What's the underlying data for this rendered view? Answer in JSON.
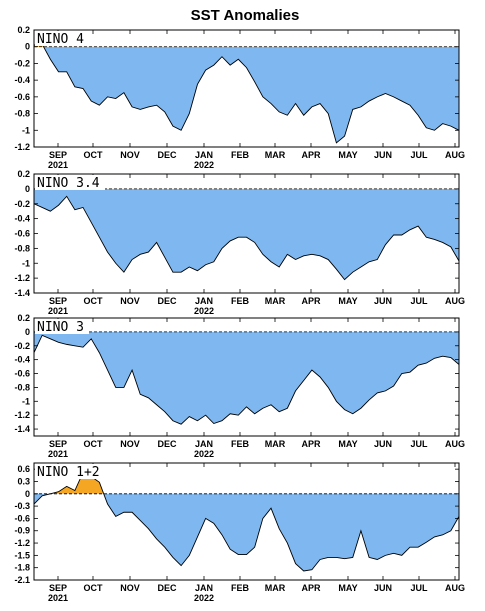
{
  "title": "SST Anomalies",
  "colors": {
    "negative": "#7fb8f0",
    "positive": "#f5a623",
    "line": "#000000",
    "frame": "#000000"
  },
  "chart_data": [
    {
      "type": "area",
      "label": "NINO 4",
      "x_ticks": [
        "SEP",
        "OCT",
        "NOV",
        "DEC",
        "JAN",
        "FEB",
        "MAR",
        "APR",
        "MAY",
        "JUN",
        "JUL",
        "AUG"
      ],
      "year_labels": [
        {
          "tick": "SEP",
          "text": "2021"
        },
        {
          "tick": "JAN",
          "text": "2022"
        }
      ],
      "ylim": [
        -1.2,
        0.2
      ],
      "y_ticks": [
        "0.2",
        "0",
        "-0.2",
        "-0.4",
        "-0.6",
        "-0.8",
        "-1",
        "-1.2"
      ],
      "y_tick_values": [
        0.2,
        0,
        -0.2,
        -0.4,
        -0.6,
        -0.8,
        -1,
        -1.2
      ],
      "xlim": [
        0,
        52
      ],
      "zero_line": "dashed",
      "x": [
        0,
        1,
        2,
        3,
        4,
        5,
        6,
        7,
        8,
        9,
        10,
        11,
        12,
        13,
        14,
        15,
        16,
        17,
        18,
        19,
        20,
        21,
        22,
        23,
        24,
        25,
        26,
        27,
        28,
        29,
        30,
        31,
        32,
        33,
        34,
        35,
        36,
        37,
        38,
        39,
        40,
        41,
        42,
        43,
        44,
        45,
        46,
        47,
        48,
        49,
        50,
        51,
        52
      ],
      "y": [
        0.02,
        0.03,
        -0.15,
        -0.3,
        -0.3,
        -0.48,
        -0.5,
        -0.65,
        -0.7,
        -0.6,
        -0.62,
        -0.55,
        -0.72,
        -0.75,
        -0.72,
        -0.7,
        -0.78,
        -0.95,
        -1.0,
        -0.8,
        -0.45,
        -0.28,
        -0.22,
        -0.12,
        -0.22,
        -0.15,
        -0.25,
        -0.42,
        -0.6,
        -0.68,
        -0.78,
        -0.82,
        -0.68,
        -0.82,
        -0.72,
        -0.68,
        -0.8,
        -1.15,
        -1.07,
        -0.75,
        -0.72,
        -0.65,
        -0.6,
        -0.56,
        -0.6,
        -0.65,
        -0.7,
        -0.82,
        -0.97,
        -1.0,
        -0.92,
        -0.95,
        -1.0
      ]
    },
    {
      "type": "area",
      "label": "NINO 3.4",
      "x_ticks": [
        "SEP",
        "OCT",
        "NOV",
        "DEC",
        "JAN",
        "FEB",
        "MAR",
        "APR",
        "MAY",
        "JUN",
        "JUL",
        "AUG"
      ],
      "year_labels": [
        {
          "tick": "SEP",
          "text": "2021"
        },
        {
          "tick": "JAN",
          "text": "2022"
        }
      ],
      "ylim": [
        -1.4,
        0.2
      ],
      "y_ticks": [
        "0.2",
        "0",
        "-0.2",
        "-0.4",
        "-0.6",
        "-0.8",
        "-1",
        "-1.2",
        "-1.4"
      ],
      "y_tick_values": [
        0.2,
        0,
        -0.2,
        -0.4,
        -0.6,
        -0.8,
        -1,
        -1.2,
        -1.4
      ],
      "xlim": [
        0,
        52
      ],
      "zero_line": "dashed",
      "x": [
        0,
        1,
        2,
        3,
        4,
        5,
        6,
        7,
        8,
        9,
        10,
        11,
        12,
        13,
        14,
        15,
        16,
        17,
        18,
        19,
        20,
        21,
        22,
        23,
        24,
        25,
        26,
        27,
        28,
        29,
        30,
        31,
        32,
        33,
        34,
        35,
        36,
        37,
        38,
        39,
        40,
        41,
        42,
        43,
        44,
        45,
        46,
        47,
        48,
        49,
        50,
        51,
        52
      ],
      "y": [
        -0.2,
        -0.25,
        -0.3,
        -0.22,
        -0.1,
        -0.28,
        -0.25,
        -0.45,
        -0.65,
        -0.85,
        -1.0,
        -1.12,
        -0.95,
        -0.88,
        -0.85,
        -0.72,
        -0.92,
        -1.12,
        -1.12,
        -1.05,
        -1.1,
        -1.02,
        -0.98,
        -0.8,
        -0.7,
        -0.65,
        -0.65,
        -0.72,
        -0.88,
        -0.98,
        -1.05,
        -0.88,
        -0.95,
        -0.9,
        -0.88,
        -0.9,
        -0.95,
        -1.08,
        -1.22,
        -1.12,
        -1.05,
        -0.98,
        -0.95,
        -0.75,
        -0.62,
        -0.62,
        -0.55,
        -0.5,
        -0.65,
        -0.68,
        -0.72,
        -0.78,
        -0.97
      ]
    },
    {
      "type": "area",
      "label": "NINO 3",
      "x_ticks": [
        "SEP",
        "OCT",
        "NOV",
        "DEC",
        "JAN",
        "FEB",
        "MAR",
        "APR",
        "MAY",
        "JUN",
        "JUL",
        "AUG"
      ],
      "year_labels": [
        {
          "tick": "SEP",
          "text": "2021"
        },
        {
          "tick": "JAN",
          "text": "2022"
        }
      ],
      "ylim": [
        -1.5,
        0.2
      ],
      "y_ticks": [
        "0.2",
        "0",
        "-0.2",
        "-0.4",
        "-0.6",
        "-0.8",
        "-1",
        "-1.2",
        "-1.4"
      ],
      "y_tick_values": [
        0.2,
        0,
        -0.2,
        -0.4,
        -0.6,
        -0.8,
        -1,
        -1.2,
        -1.4
      ],
      "xlim": [
        0,
        52
      ],
      "zero_line": "dashed",
      "x": [
        0,
        1,
        2,
        3,
        4,
        5,
        6,
        7,
        8,
        9,
        10,
        11,
        12,
        13,
        14,
        15,
        16,
        17,
        18,
        19,
        20,
        21,
        22,
        23,
        24,
        25,
        26,
        27,
        28,
        29,
        30,
        31,
        32,
        33,
        34,
        35,
        36,
        37,
        38,
        39,
        40,
        41,
        42,
        43,
        44,
        45,
        46,
        47,
        48,
        49,
        50,
        51,
        52
      ],
      "y": [
        -0.3,
        -0.05,
        -0.1,
        -0.15,
        -0.18,
        -0.2,
        -0.22,
        -0.1,
        -0.3,
        -0.55,
        -0.8,
        -0.8,
        -0.55,
        -0.9,
        -0.95,
        -1.05,
        -1.15,
        -1.28,
        -1.33,
        -1.22,
        -1.28,
        -1.2,
        -1.32,
        -1.28,
        -1.18,
        -1.2,
        -1.08,
        -1.18,
        -1.1,
        -1.05,
        -1.15,
        -1.1,
        -0.85,
        -0.7,
        -0.55,
        -0.65,
        -0.8,
        -1.0,
        -1.12,
        -1.18,
        -1.1,
        -0.98,
        -0.88,
        -0.85,
        -0.78,
        -0.6,
        -0.58,
        -0.48,
        -0.45,
        -0.38,
        -0.35,
        -0.37,
        -0.47
      ]
    },
    {
      "type": "area",
      "label": "NINO 1+2",
      "x_ticks": [
        "SEP",
        "OCT",
        "NOV",
        "DEC",
        "JAN",
        "FEB",
        "MAR",
        "APR",
        "MAY",
        "JUN",
        "JUL",
        "AUG"
      ],
      "year_labels": [
        {
          "tick": "SEP",
          "text": "2021"
        },
        {
          "tick": "JAN",
          "text": "2022"
        }
      ],
      "ylim": [
        -2.1,
        0.75
      ],
      "y_ticks": [
        "0.6",
        "0.3",
        "0",
        "-0.3",
        "-0.6",
        "-0.9",
        "-1.2",
        "-1.5",
        "-1.8",
        "-2.1"
      ],
      "y_tick_values": [
        0.6,
        0.3,
        0,
        -0.3,
        -0.6,
        -0.9,
        -1.2,
        -1.5,
        -1.8,
        -2.1
      ],
      "xlim": [
        0,
        52
      ],
      "zero_line": "dashed",
      "x": [
        0,
        1,
        2,
        3,
        4,
        5,
        6,
        7,
        8,
        9,
        10,
        11,
        12,
        13,
        14,
        15,
        16,
        17,
        18,
        19,
        20,
        21,
        22,
        23,
        24,
        25,
        26,
        27,
        28,
        29,
        30,
        31,
        32,
        33,
        34,
        35,
        36,
        37,
        38,
        39,
        40,
        41,
        42,
        43,
        44,
        45,
        46,
        47,
        48,
        49,
        50,
        51,
        52
      ],
      "y": [
        -0.25,
        -0.05,
        0.0,
        0.05,
        0.18,
        0.08,
        0.52,
        0.42,
        0.28,
        -0.25,
        -0.55,
        -0.45,
        -0.45,
        -0.65,
        -0.85,
        -1.1,
        -1.3,
        -1.55,
        -1.75,
        -1.5,
        -1.05,
        -0.6,
        -0.72,
        -1.0,
        -1.35,
        -1.48,
        -1.48,
        -1.3,
        -0.6,
        -0.35,
        -0.85,
        -1.2,
        -1.7,
        -1.88,
        -1.85,
        -1.6,
        -1.55,
        -1.55,
        -1.58,
        -1.55,
        -0.9,
        -1.55,
        -1.6,
        -1.5,
        -1.45,
        -1.5,
        -1.3,
        -1.3,
        -1.18,
        -1.05,
        -1.0,
        -0.9,
        -0.55
      ]
    }
  ]
}
